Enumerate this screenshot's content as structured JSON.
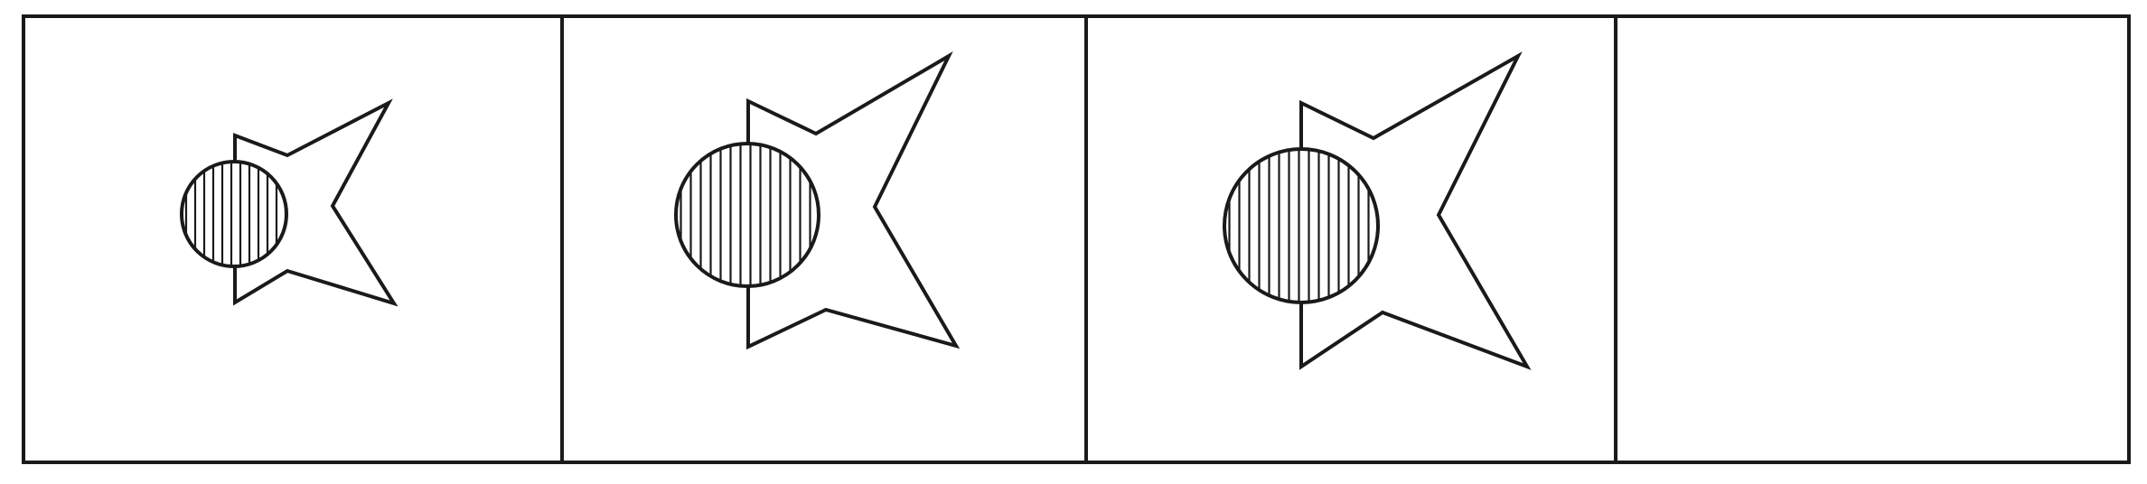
{
  "puzzle": {
    "panels": [
      {
        "id": 1,
        "content": "figure",
        "shape": "four-point star with hatched circle",
        "size_level": 1
      },
      {
        "id": 2,
        "content": "figure",
        "shape": "four-point star with hatched circle",
        "size_level": 2
      },
      {
        "id": 3,
        "content": "figure",
        "shape": "four-point star with hatched circle",
        "size_level": 3
      },
      {
        "id": 4,
        "content": "empty"
      }
    ],
    "colors": {
      "line": "#1a1a1a",
      "background": "#ffffff"
    }
  }
}
